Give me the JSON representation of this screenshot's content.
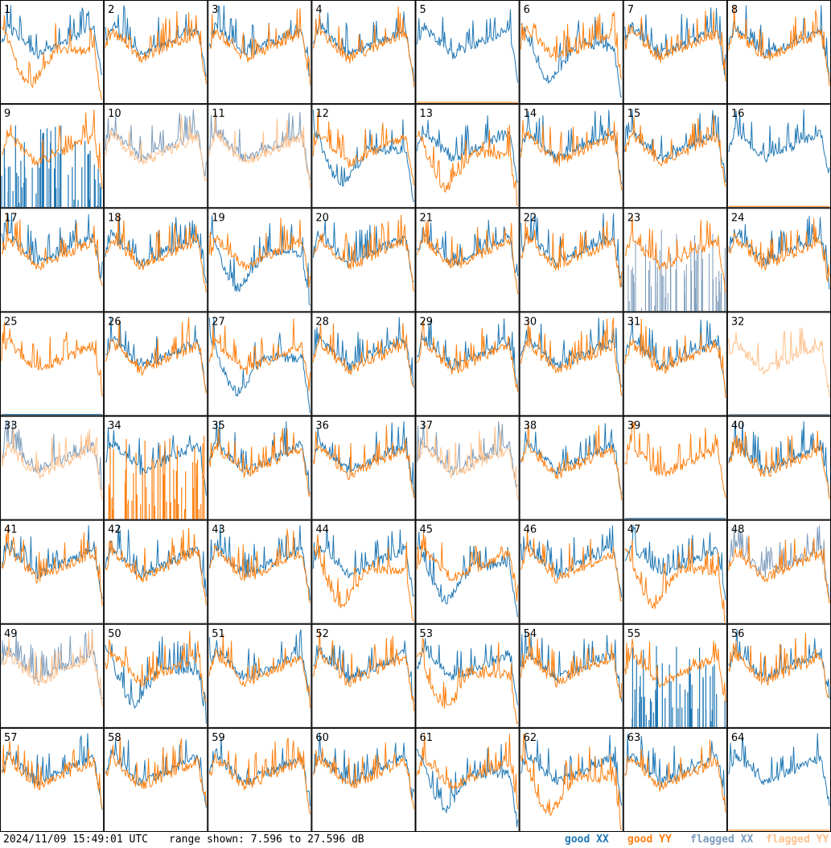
{
  "chart_data": {
    "type": "line",
    "layout": "8x8 small multiples",
    "tile_count": 64,
    "tile_labels": [
      "1",
      "2",
      "3",
      "4",
      "5",
      "6",
      "7",
      "8",
      "9",
      "10",
      "11",
      "12",
      "13",
      "14",
      "15",
      "16",
      "17",
      "18",
      "19",
      "20",
      "21",
      "22",
      "23",
      "24",
      "25",
      "26",
      "27",
      "28",
      "29",
      "30",
      "31",
      "32",
      "33",
      "34",
      "35",
      "36",
      "37",
      "38",
      "39",
      "40",
      "41",
      "42",
      "43",
      "44",
      "45",
      "46",
      "47",
      "48",
      "49",
      "50",
      "51",
      "52",
      "53",
      "54",
      "55",
      "56",
      "57",
      "58",
      "59",
      "60",
      "61",
      "62",
      "63",
      "64"
    ],
    "y_range_db": [
      7.596,
      27.596
    ],
    "grid": false,
    "series_legend": [
      {
        "key": "good_xx",
        "label_word": "good",
        "label_pol": "XX",
        "color": "#1f77b4"
      },
      {
        "key": "good_yy",
        "label_word": "good",
        "label_pol": "YY",
        "color": "#ff7f0e"
      },
      {
        "key": "flagged_xx",
        "label_word": "flagged",
        "label_pol": "XX",
        "color": "#7b9bbb"
      },
      {
        "key": "flagged_yy",
        "label_word": "flagged",
        "label_pol": "YY",
        "color": "#ffc08a"
      }
    ],
    "legend_placement": "bottom-right",
    "tile_states": {
      "1": {
        "xx": "good",
        "yy": "good",
        "yy_profile": "sag"
      },
      "5": {
        "xx": "good",
        "yy": "dead"
      },
      "6": {
        "xx": "good",
        "yy": "good",
        "xx_profile": "sag"
      },
      "9": {
        "xx": "spiky_low",
        "yy": "good"
      },
      "10": {
        "xx": "flagged",
        "yy": "flagged"
      },
      "11": {
        "xx": "flagged",
        "yy": "flagged"
      },
      "12": {
        "xx": "good",
        "yy": "good",
        "xx_profile": "sag"
      },
      "13": {
        "xx": "good",
        "yy": "good",
        "yy_profile": "sag"
      },
      "16": {
        "xx": "good",
        "yy": "dead"
      },
      "19": {
        "xx": "good",
        "yy": "good",
        "xx_profile": "sag"
      },
      "23": {
        "xx": "flagged_noise",
        "yy": "good"
      },
      "25": {
        "xx": "dead",
        "yy": "good"
      },
      "27": {
        "xx": "good",
        "yy": "good",
        "xx_profile": "sag"
      },
      "32": {
        "xx": "flagged_dead",
        "yy": "flagged"
      },
      "33": {
        "xx": "flagged",
        "yy": "flagged"
      },
      "34": {
        "xx": "good",
        "yy": "spiky_low"
      },
      "37": {
        "xx": "flagged",
        "yy": "flagged"
      },
      "39": {
        "xx": "dead",
        "yy": "good"
      },
      "44": {
        "xx": "good",
        "yy": "good",
        "yy_profile": "sag"
      },
      "45": {
        "xx": "good",
        "yy": "good",
        "xx_profile": "sag"
      },
      "47": {
        "xx": "good",
        "yy": "good",
        "yy_profile": "sag"
      },
      "48": {
        "xx": "flagged",
        "yy": "good"
      },
      "49": {
        "xx": "flagged",
        "yy": "flagged"
      },
      "50": {
        "xx": "good",
        "yy": "good",
        "xx_profile": "sag"
      },
      "53": {
        "xx": "good",
        "yy": "good",
        "yy_profile": "sag"
      },
      "55": {
        "xx": "spiky_low",
        "yy": "good"
      },
      "61": {
        "xx": "good",
        "yy": "good",
        "xx_profile": "sag"
      },
      "62": {
        "xx": "good",
        "yy": "good",
        "yy_profile": "sag"
      },
      "64": {
        "xx": "good",
        "yy": "dead"
      }
    }
  },
  "footer": {
    "timestamp": "2024/11/09 15:49:01 UTC",
    "range_text": "range shown: 7.596 to 27.596 dB"
  }
}
